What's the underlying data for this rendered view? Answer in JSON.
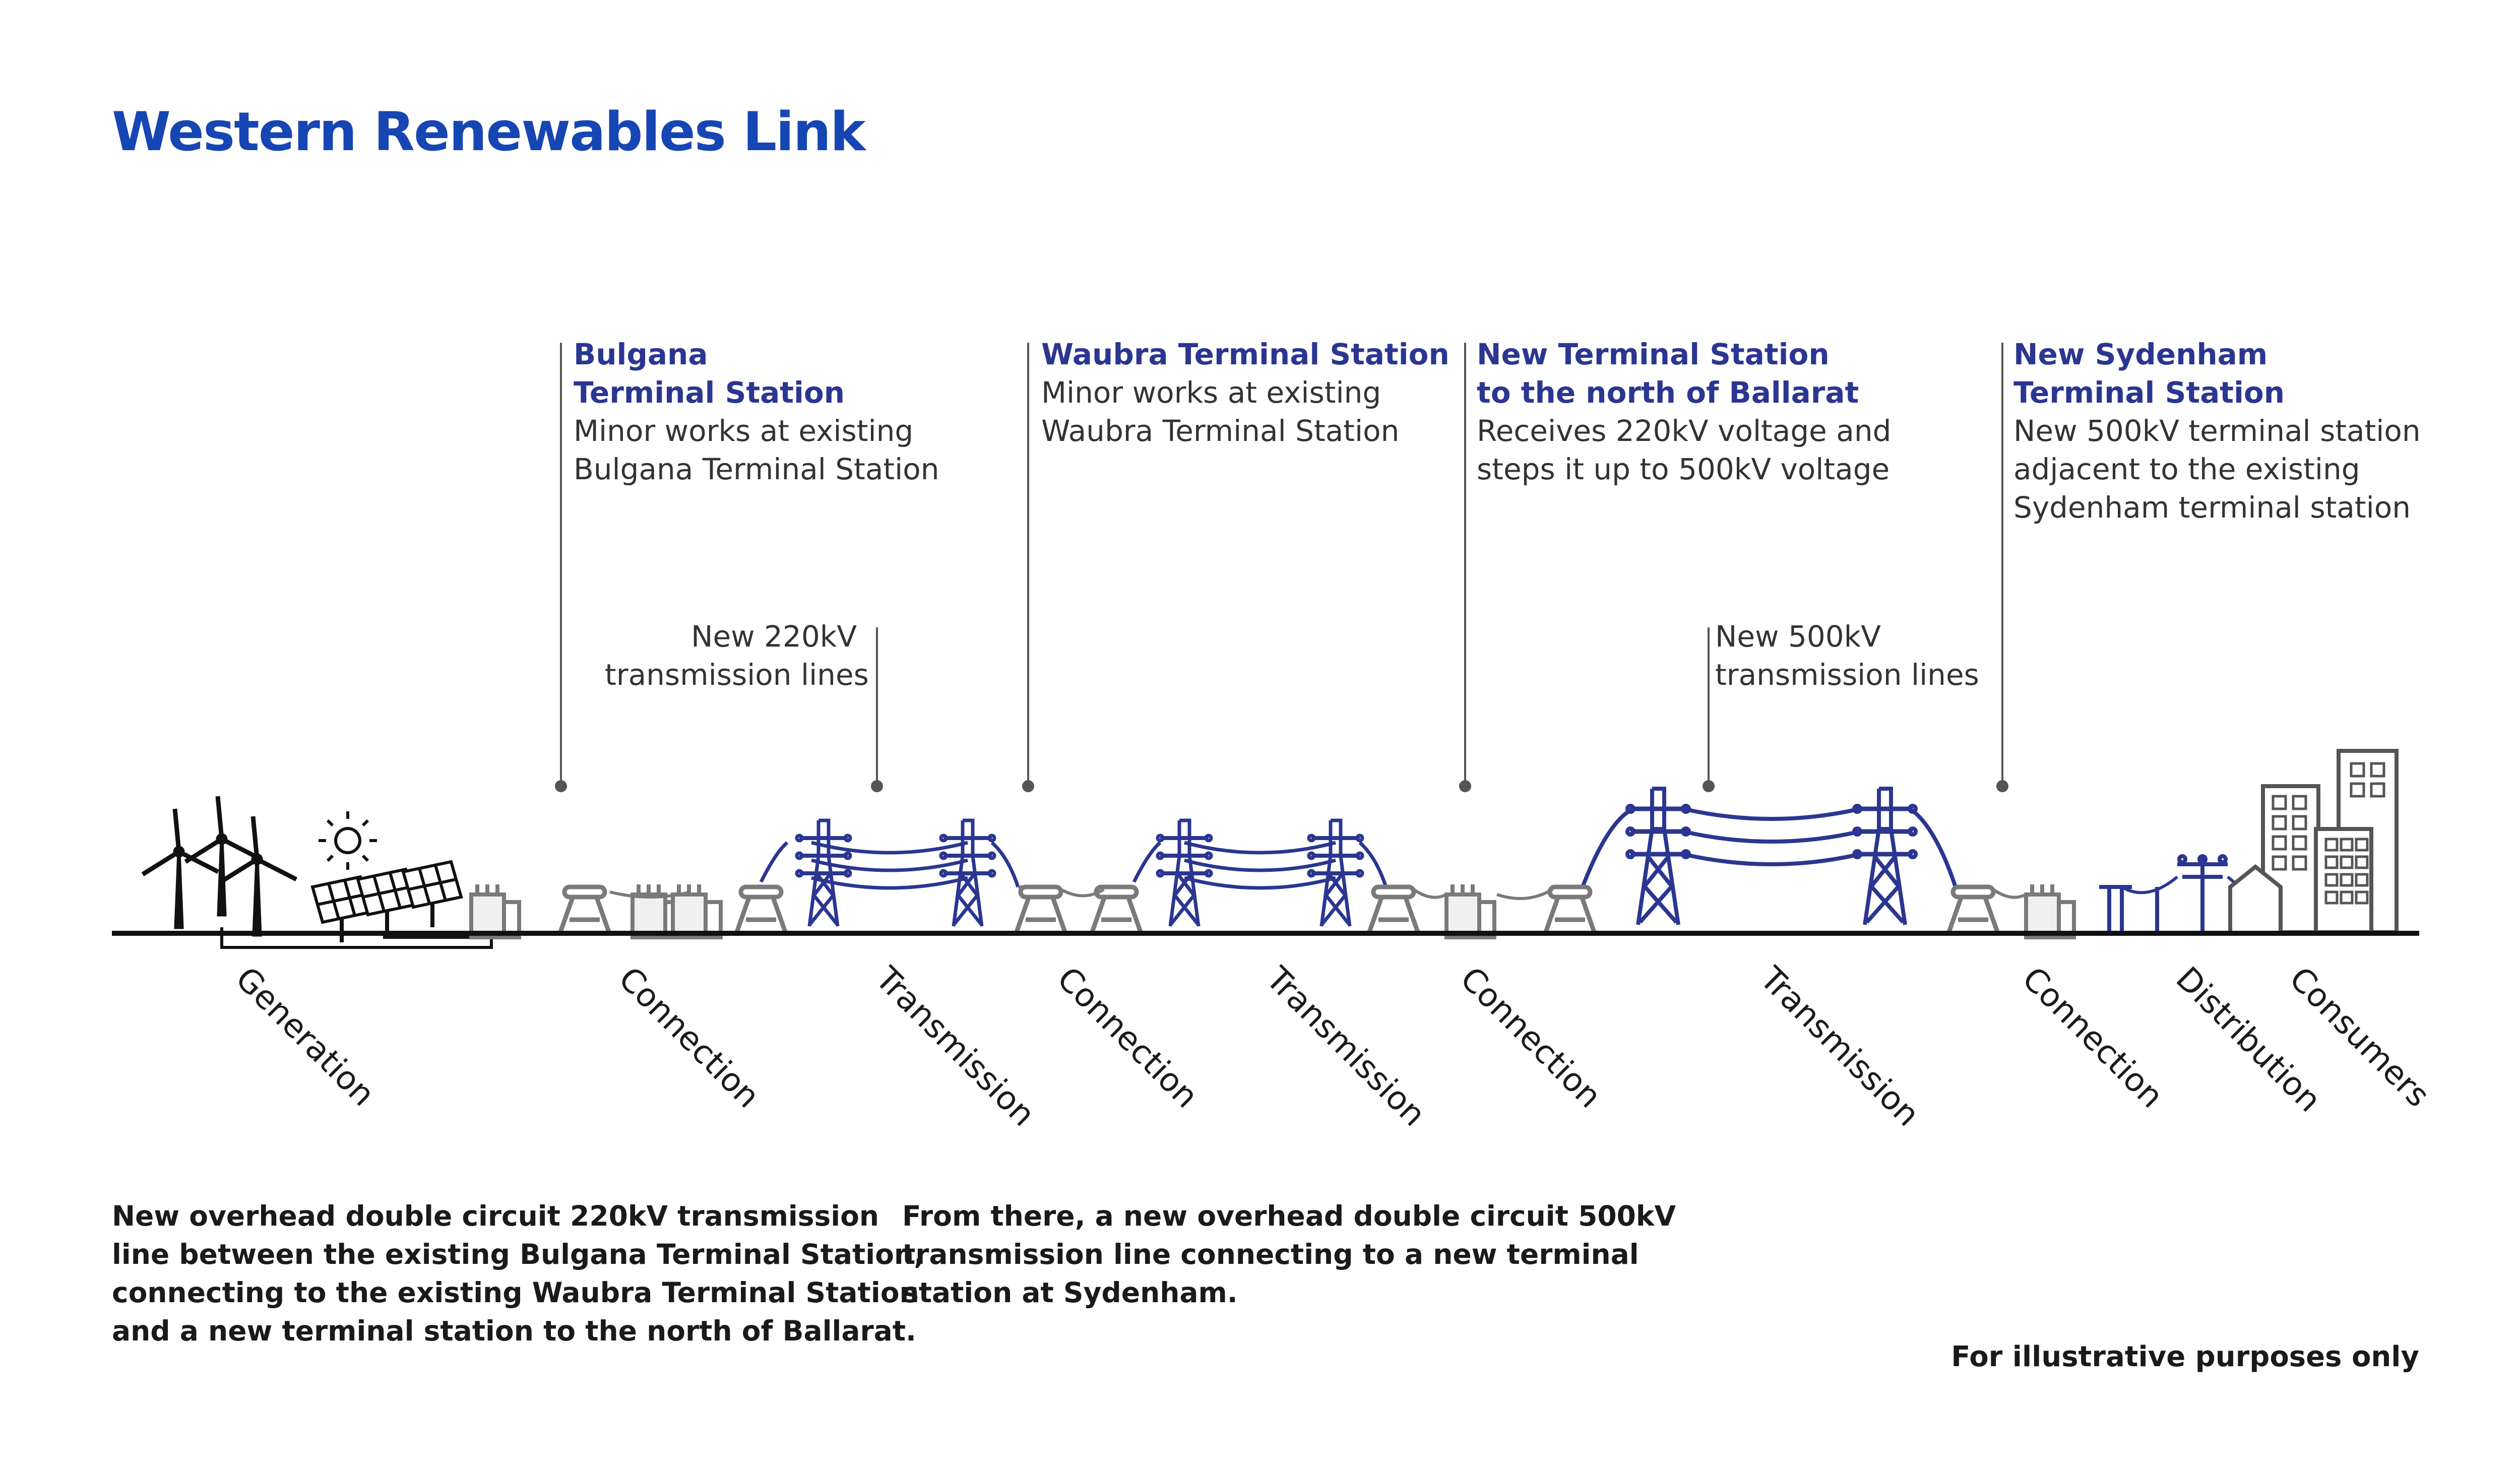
{
  "title": "Western Renewables Link",
  "callouts": [
    {
      "heading": [
        "Bulgana",
        "Terminal Station"
      ],
      "body": [
        "Minor works at existing",
        "Bulgana Terminal Station"
      ]
    },
    {
      "heading": [
        "Waubra Terminal Station"
      ],
      "body": [
        "Minor works at existing",
        "Waubra Terminal Station"
      ]
    },
    {
      "heading": [
        "New Terminal Station",
        "to the north of Ballarat"
      ],
      "body": [
        "Receives 220kV voltage and",
        "steps it up to 500kV voltage"
      ]
    },
    {
      "heading": [
        "New Sydenham",
        "Terminal Station"
      ],
      "body": [
        "New 500kV terminal station",
        "adjacent to the existing",
        "Sydenham terminal station"
      ]
    }
  ],
  "line_labels": [
    {
      "lines": [
        "New 220kV",
        "transmission lines"
      ]
    },
    {
      "lines": [
        "New 500kV",
        "transmission lines"
      ]
    }
  ],
  "stages": [
    "Generation",
    "Connection",
    "Transmission",
    "Connection",
    "Transmission",
    "Connection",
    "Transmission",
    "Connection",
    "Distribution",
    "Consumers"
  ],
  "notes": [
    {
      "lines": [
        "New overhead double circuit 220kV transmission",
        "line between the existing Bulgana Terminal Station,",
        "connecting to the existing Waubra Terminal Station",
        "and a new terminal station to the north of Ballarat."
      ]
    },
    {
      "lines": [
        "From there, a new overhead double circuit 500kV",
        "transmission line connecting to a new terminal",
        "station at Sydenham."
      ]
    }
  ],
  "disclaimer": "For illustrative purposes only",
  "colors": {
    "title": "#1646b3",
    "heading": "#2b3691",
    "tower": "#2b3691",
    "equipment": "#7a7a7a",
    "ground": "#111111"
  }
}
